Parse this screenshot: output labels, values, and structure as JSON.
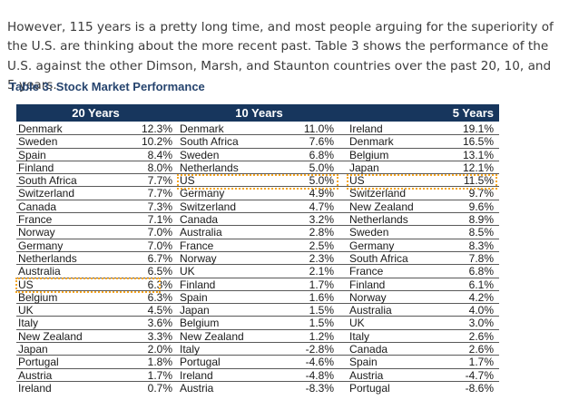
{
  "intro_text": "However, 115 years is a pretty long time, and most people arguing for the superiority of the U.S. are thinking about the more recent past. Table 3 shows the performance of the U.S. against the other Dimson, Marsh, and Staunton countries over the past 20, 10, and 5 years.",
  "table": {
    "title": "Table 3: Stock Market Performance",
    "headers": [
      "20 Years",
      "10 Years",
      "5 Years"
    ],
    "columns": {
      "twenty_years": [
        {
          "country": "Denmark",
          "value": "12.3%"
        },
        {
          "country": "Sweden",
          "value": "10.2%"
        },
        {
          "country": "Spain",
          "value": "8.4%"
        },
        {
          "country": "Finland",
          "value": "8.0%"
        },
        {
          "country": "South Africa",
          "value": "7.7%"
        },
        {
          "country": "Switzerland",
          "value": "7.7%"
        },
        {
          "country": "Canada",
          "value": "7.3%"
        },
        {
          "country": "France",
          "value": "7.1%"
        },
        {
          "country": "Norway",
          "value": "7.0%"
        },
        {
          "country": "Germany",
          "value": "7.0%"
        },
        {
          "country": "Netherlands",
          "value": "6.7%"
        },
        {
          "country": "Australia",
          "value": "6.5%"
        },
        {
          "country": "US",
          "value": "6.3%"
        },
        {
          "country": "Belgium",
          "value": "6.3%"
        },
        {
          "country": "UK",
          "value": "4.5%"
        },
        {
          "country": "Italy",
          "value": "3.6%"
        },
        {
          "country": "New Zealand",
          "value": "3.3%"
        },
        {
          "country": "Japan",
          "value": "2.0%"
        },
        {
          "country": "Portugal",
          "value": "1.8%"
        },
        {
          "country": "Austria",
          "value": "1.7%"
        },
        {
          "country": "Ireland",
          "value": "0.7%"
        }
      ],
      "ten_years": [
        {
          "country": "Denmark",
          "value": "11.0%"
        },
        {
          "country": "South Africa",
          "value": "7.6%"
        },
        {
          "country": "Sweden",
          "value": "6.8%"
        },
        {
          "country": "Netherlands",
          "value": "5.0%"
        },
        {
          "country": "US",
          "value": "5.0%"
        },
        {
          "country": "Germany",
          "value": "4.9%"
        },
        {
          "country": "Switzerland",
          "value": "4.7%"
        },
        {
          "country": "Canada",
          "value": "3.2%"
        },
        {
          "country": "Australia",
          "value": "2.8%"
        },
        {
          "country": "France",
          "value": "2.5%"
        },
        {
          "country": "Norway",
          "value": "2.3%"
        },
        {
          "country": "UK",
          "value": "2.1%"
        },
        {
          "country": "Finland",
          "value": "1.7%"
        },
        {
          "country": "Spain",
          "value": "1.6%"
        },
        {
          "country": "Japan",
          "value": "1.5%"
        },
        {
          "country": "Belgium",
          "value": "1.5%"
        },
        {
          "country": "New Zealand",
          "value": "1.2%"
        },
        {
          "country": "Italy",
          "value": "-2.8%"
        },
        {
          "country": "Portugal",
          "value": "-4.6%"
        },
        {
          "country": "Ireland",
          "value": "-4.8%"
        },
        {
          "country": "Austria",
          "value": "-8.3%"
        }
      ],
      "five_years": [
        {
          "country": "Ireland",
          "value": "19.1%"
        },
        {
          "country": "Denmark",
          "value": "16.5%"
        },
        {
          "country": "Belgium",
          "value": "13.1%"
        },
        {
          "country": "Japan",
          "value": "12.1%"
        },
        {
          "country": "US",
          "value": "11.5%"
        },
        {
          "country": "Switzerland",
          "value": "9.7%"
        },
        {
          "country": "New Zealand",
          "value": "9.6%"
        },
        {
          "country": "Netherlands",
          "value": "8.9%"
        },
        {
          "country": "Sweden",
          "value": "8.5%"
        },
        {
          "country": "Germany",
          "value": "8.3%"
        },
        {
          "country": "South Africa",
          "value": "7.8%"
        },
        {
          "country": "France",
          "value": "6.8%"
        },
        {
          "country": "Finland",
          "value": "6.1%"
        },
        {
          "country": "Norway",
          "value": "4.2%"
        },
        {
          "country": "Australia",
          "value": "4.0%"
        },
        {
          "country": "UK",
          "value": "3.0%"
        },
        {
          "country": "Italy",
          "value": "2.6%"
        },
        {
          "country": "Canada",
          "value": "2.6%"
        },
        {
          "country": "Spain",
          "value": "1.7%"
        },
        {
          "country": "Austria",
          "value": "-4.7%"
        },
        {
          "country": "Portugal",
          "value": "-8.6%"
        }
      ]
    },
    "highlighted_country": "US",
    "colors": {
      "header_bg": "#17365d",
      "title": "#26446e",
      "highlight": "#f5a623"
    }
  }
}
